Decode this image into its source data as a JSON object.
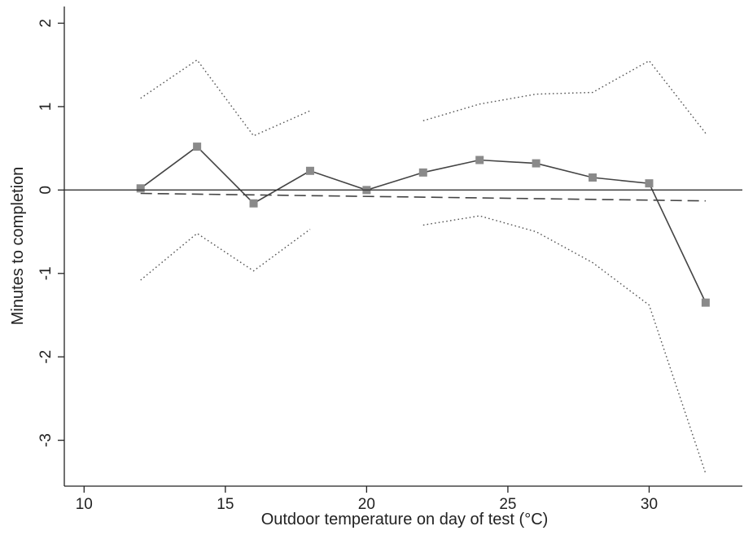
{
  "chart_data": {
    "type": "line",
    "title": "",
    "xlabel": "Outdoor temperature on day of test (°C)",
    "ylabel": "Minutes to completion",
    "xlim": [
      9.3,
      33.3
    ],
    "ylim": [
      -3.55,
      2.2
    ],
    "xticks": [
      10,
      15,
      20,
      25,
      30
    ],
    "yticks": [
      2,
      1,
      0,
      -1,
      -2,
      -3
    ],
    "grid": false,
    "legend": "none",
    "reference_line_y": 0,
    "series": [
      {
        "style": "solid-square-markers",
        "color": "#444444",
        "marker_color": "#8a8a8a",
        "x": [
          12,
          14,
          16,
          18,
          20,
          22,
          24,
          26,
          28,
          30,
          32
        ],
        "y": [
          0.02,
          0.52,
          -0.16,
          0.23,
          0.0,
          0.21,
          0.36,
          0.32,
          0.15,
          0.08,
          -1.35
        ]
      },
      {
        "style": "dashed",
        "color": "#444444",
        "x": [
          12,
          32
        ],
        "y": [
          -0.04,
          -0.13
        ]
      },
      {
        "style": "dotted",
        "color": "#555555",
        "segments": [
          {
            "x": [
              12,
              14,
              16,
              18
            ],
            "y": [
              1.1,
              1.56,
              0.65,
              0.95
            ]
          },
          {
            "x": [
              22,
              24,
              26,
              28,
              30,
              32
            ],
            "y": [
              0.83,
              1.03,
              1.15,
              1.17,
              1.55,
              0.68
            ]
          }
        ]
      },
      {
        "style": "dotted",
        "color": "#555555",
        "segments": [
          {
            "x": [
              12,
              14,
              16,
              18
            ],
            "y": [
              -1.08,
              -0.52,
              -0.97,
              -0.47
            ]
          },
          {
            "x": [
              22,
              24,
              26,
              28,
              30,
              32
            ],
            "y": [
              -0.42,
              -0.31,
              -0.5,
              -0.87,
              -1.38,
              -3.4
            ]
          }
        ]
      }
    ]
  }
}
